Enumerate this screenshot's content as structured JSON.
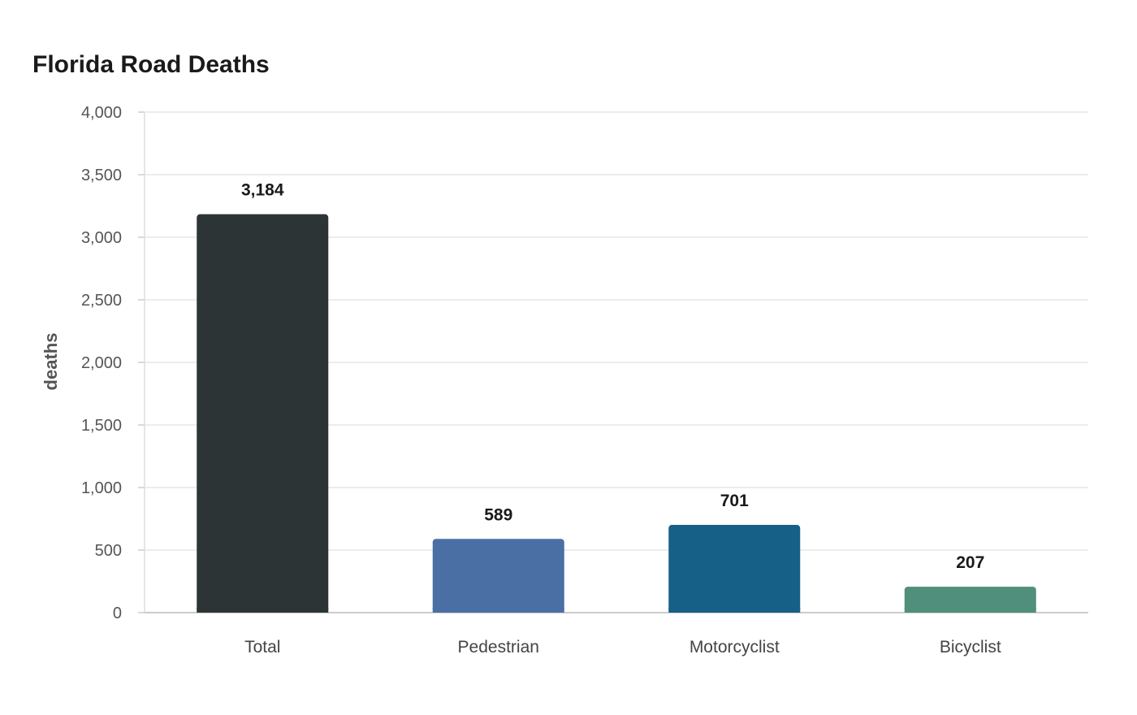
{
  "chart_data": {
    "type": "bar",
    "title": "Florida Road Deaths",
    "xlabel": "",
    "ylabel": "deaths",
    "categories": [
      "Total",
      "Pedestrian",
      "Motorcyclist",
      "Bicyclist"
    ],
    "values": [
      3184,
      589,
      701,
      207
    ],
    "data_labels": [
      "3,184",
      "589",
      "701",
      "207"
    ],
    "colors": [
      "#2d3436",
      "#4a6fa5",
      "#166088",
      "#4f8f7b"
    ],
    "ylim": [
      0,
      4000
    ],
    "yticks": [
      0,
      500,
      1000,
      1500,
      2000,
      2500,
      3000,
      3500,
      4000
    ],
    "ytick_labels": [
      "0",
      "500",
      "1,000",
      "1,500",
      "2,000",
      "2,500",
      "3,000",
      "3,500",
      "4,000"
    ],
    "grid": true,
    "legend": "none"
  }
}
